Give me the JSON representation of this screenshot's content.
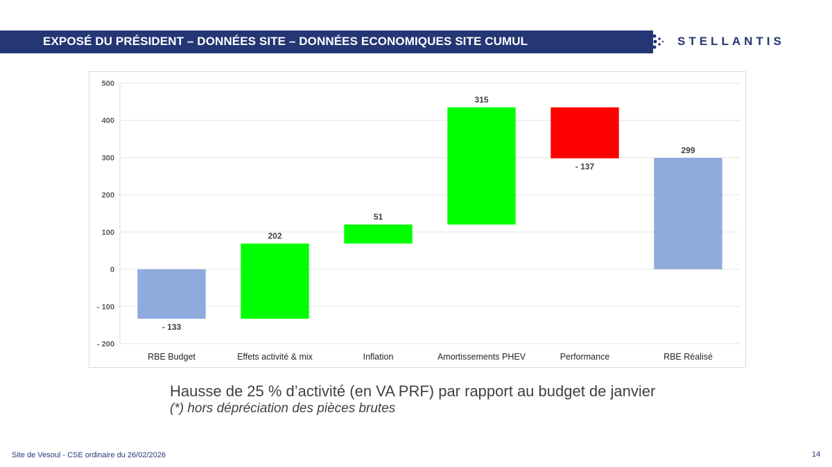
{
  "header": {
    "title": "EXPOSÉ DU PRÉSIDENT – DONNÉES SITE – DONNÉES ECONOMIQUES SITE CUMUL",
    "logo_text": "STELLANTIS"
  },
  "chart_data": {
    "type": "waterfall",
    "categories": [
      "RBE Budget",
      "Effets activité & mix",
      "Inflation",
      "Amortissements PHEV",
      "Performance",
      "RBE Réalisé"
    ],
    "values": [
      -133,
      202,
      51,
      315,
      -137,
      299
    ],
    "labels": [
      "- 133",
      "202",
      "51",
      "315",
      "- 137",
      "299"
    ],
    "kinds": [
      "total",
      "delta",
      "delta",
      "delta",
      "delta",
      "total"
    ],
    "ylim": [
      -200,
      500
    ],
    "yticks": [
      -200,
      -100,
      0,
      100,
      200,
      300,
      400,
      500
    ],
    "ytick_labels": [
      "- 200",
      "- 100",
      "0",
      "100",
      "200",
      "300",
      "400",
      "500"
    ],
    "grid": true,
    "colors": {
      "total": "#8faadc",
      "increase": "#00ff00",
      "decrease": "#ff0000"
    }
  },
  "notes": {
    "line1": "Hausse de 25 % d’activité (en VA PRF) par rapport au budget de janvier",
    "line2": "(*) hors dépréciation des pièces brutes"
  },
  "footer": {
    "text": "Site de Vesoul - CSE ordinaire du 26/02/2026",
    "page": "14"
  }
}
